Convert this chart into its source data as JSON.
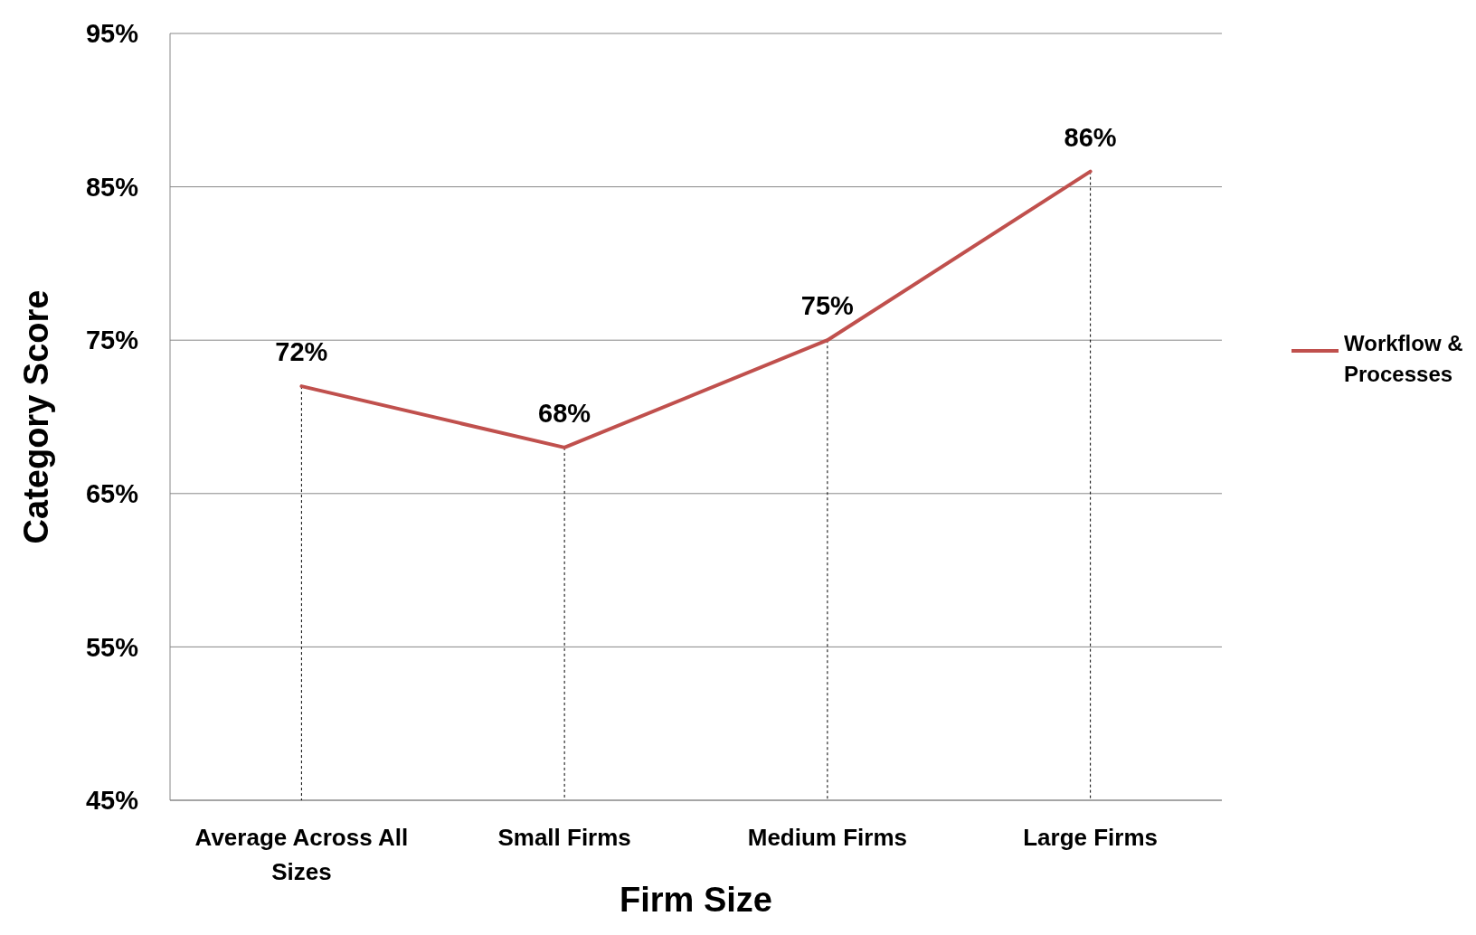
{
  "chart_data": {
    "type": "line",
    "xlabel": "Firm Size",
    "ylabel": "Category Score",
    "categories": [
      "Average Across All Sizes",
      "Small Firms",
      "Medium Firms",
      "Large Firms"
    ],
    "series": [
      {
        "name": "Workflow & Processes",
        "color": "#c0504d",
        "values": [
          72,
          68,
          75,
          86
        ],
        "value_labels": [
          "72%",
          "68%",
          "75%",
          "86%"
        ]
      }
    ],
    "ylim": [
      45,
      95
    ],
    "yticks": [
      {
        "value": 45,
        "label": "45%"
      },
      {
        "value": 55,
        "label": "55%"
      },
      {
        "value": 65,
        "label": "65%"
      },
      {
        "value": 75,
        "label": "75%"
      },
      {
        "value": 85,
        "label": "85%"
      },
      {
        "value": 95,
        "label": "95%"
      }
    ],
    "ref_lines": [
      {
        "axis": "x",
        "value": "Average Across All Sizes",
        "color": "#000000",
        "line_style": "dashed"
      },
      {
        "axis": "x",
        "value": "Small Firms",
        "color": "#000000",
        "line_style": "dashed"
      },
      {
        "axis": "x",
        "value": "Medium Firms",
        "color": "#000000",
        "line_style": "dashed"
      },
      {
        "axis": "x",
        "value": "Large Firms",
        "color": "#000000",
        "line_style": "dashed"
      }
    ],
    "grid": "y",
    "legend": "right",
    "marker": "none",
    "line_style": "solid"
  }
}
